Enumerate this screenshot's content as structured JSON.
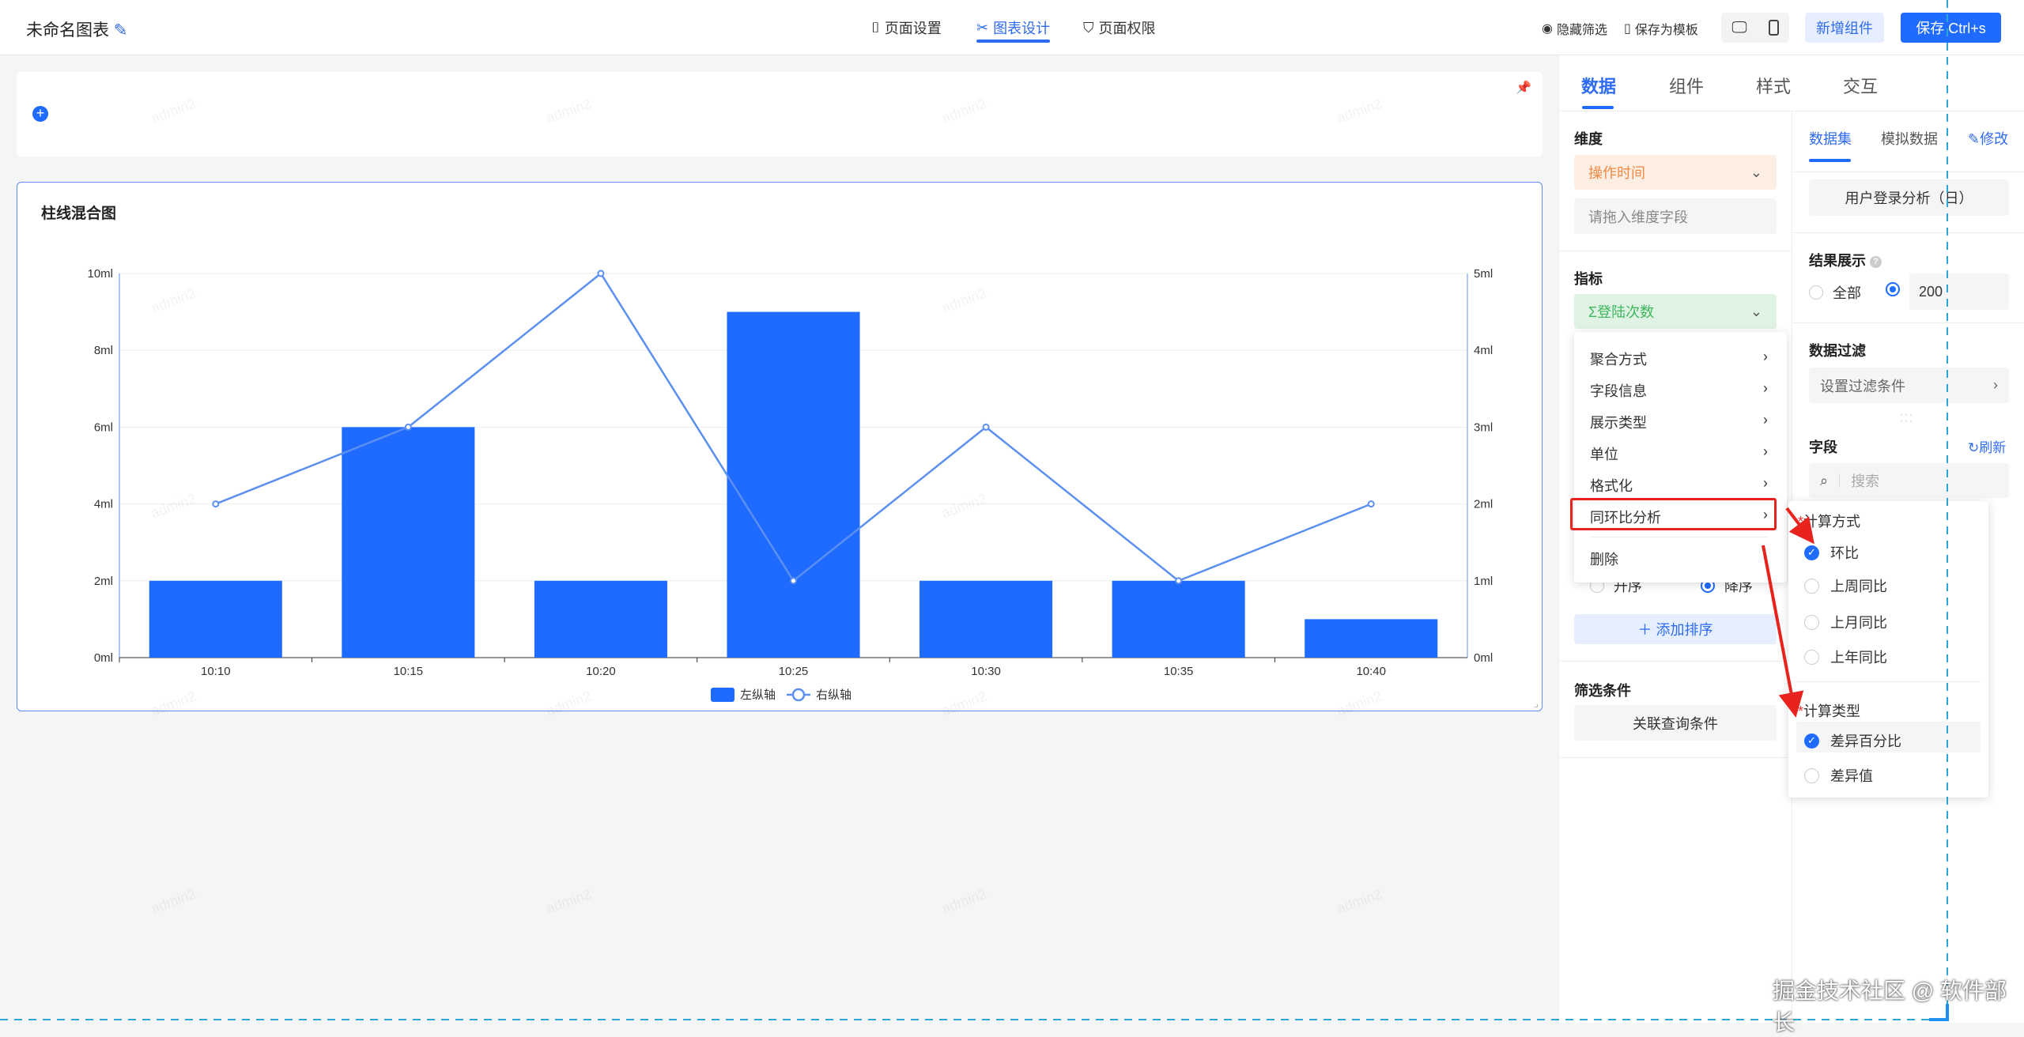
{
  "header": {
    "title": "未命名图表",
    "nav": [
      {
        "label": "页面设置",
        "icon": "bookmark-icon"
      },
      {
        "label": "图表设计",
        "icon": "design-icon",
        "active": true
      },
      {
        "label": "页面权限",
        "icon": "shield-icon"
      }
    ],
    "hide_filter": "隐藏筛选",
    "save_template": "保存为模板",
    "add_component": "新增组件",
    "save": "保存 Ctrl+s"
  },
  "watermark": "admin2",
  "chart_data": {
    "type": "bar+line",
    "title": "柱线混合图",
    "categories": [
      "10:10",
      "10:15",
      "10:20",
      "10:25",
      "10:30",
      "10:35",
      "10:40"
    ],
    "series": [
      {
        "name": "左纵轴",
        "type": "bar",
        "axis": "left",
        "values": [
          2,
          6,
          2,
          9,
          2,
          2,
          1
        ]
      },
      {
        "name": "右纵轴",
        "type": "line",
        "axis": "right",
        "values": [
          2,
          3,
          5,
          1,
          3,
          1,
          2
        ]
      }
    ],
    "left_axis": {
      "ylim": [
        0,
        10
      ],
      "ticks": [
        "0ml",
        "2ml",
        "4ml",
        "6ml",
        "8ml",
        "10ml"
      ]
    },
    "right_axis": {
      "ylim": [
        0,
        5
      ],
      "ticks": [
        "0ml",
        "1ml",
        "2ml",
        "3ml",
        "4ml",
        "5ml"
      ]
    },
    "grid": true,
    "legend": "bottom",
    "colors": {
      "bar": "#1f6bff",
      "line": "#5b8ff0"
    }
  },
  "panel": {
    "tabs": [
      "数据",
      "组件",
      "样式",
      "交互"
    ],
    "dimension": {
      "label": "维度",
      "field": "操作时间",
      "placeholder": "请拖入维度字段"
    },
    "metric": {
      "label": "指标",
      "field": "Σ登陆次数"
    },
    "menu": [
      "聚合方式",
      "字段信息",
      "展示类型",
      "单位",
      "格式化",
      "同环比分析",
      "删除"
    ],
    "sort": {
      "asc": "升序",
      "desc": "降序",
      "add": "添加排序"
    },
    "filter": {
      "label": "筛选条件",
      "button": "关联查询条件"
    },
    "dataset": {
      "tabs": [
        "数据集",
        "模拟数据"
      ],
      "edit": "修改",
      "name": "用户登录分析（日）"
    },
    "result": {
      "label": "结果展示",
      "all": "全部",
      "count": "200"
    },
    "data_filter": {
      "label": "数据过滤",
      "placeholder": "设置过滤条件"
    },
    "fields": {
      "label": "字段",
      "refresh": "刷新",
      "search_placeholder": "搜索"
    }
  },
  "submenu": {
    "method_label": "计算方式",
    "methods": [
      {
        "label": "环比",
        "checked": true
      },
      {
        "label": "上周同比",
        "checked": false
      },
      {
        "label": "上月同比",
        "checked": false
      },
      {
        "label": "上年同比",
        "checked": false
      }
    ],
    "type_label": "计算类型",
    "types": [
      {
        "label": "差异百分比",
        "checked": true
      },
      {
        "label": "差异值",
        "checked": false
      }
    ]
  },
  "footer_watermark": "掘金技术社区 @ 软件部长"
}
